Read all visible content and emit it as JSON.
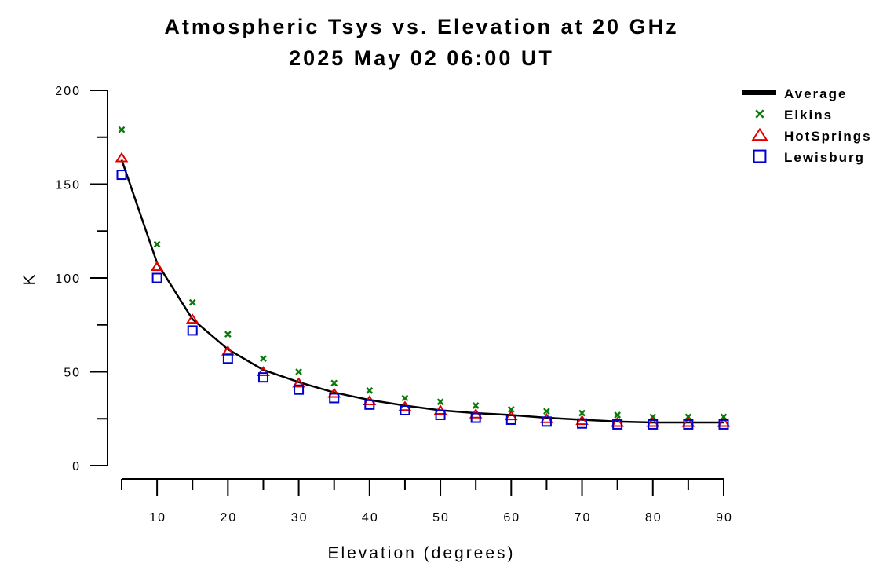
{
  "chart_data": {
    "type": "line",
    "title": "Atmospheric Tsys vs. Elevation at 20 GHz",
    "subtitle": "2025 May 02 06:00 UT",
    "xlabel": "Elevation (degrees)",
    "ylabel": "K",
    "xlim": [
      5,
      90
    ],
    "ylim": [
      0,
      200
    ],
    "x_ticks": [
      10,
      20,
      30,
      40,
      50,
      60,
      70,
      80,
      90
    ],
    "y_ticks": [
      0,
      50,
      100,
      150,
      200
    ],
    "grid": false,
    "legend_position": "top-right",
    "x": [
      5,
      10,
      15,
      20,
      25,
      30,
      35,
      40,
      45,
      50,
      55,
      60,
      65,
      70,
      75,
      80,
      85,
      90
    ],
    "series": [
      {
        "name": "Average",
        "style": "line",
        "color": "#000000",
        "values": [
          163,
          108,
          78,
          62,
          51,
          44.5,
          39,
          35,
          32,
          29.5,
          28,
          27,
          25.5,
          24.5,
          23.5,
          23,
          23,
          23
        ]
      },
      {
        "name": "Elkins",
        "style": "x-marker",
        "color": "#0a7a0a",
        "values": [
          179,
          118,
          87,
          70,
          57,
          50,
          44,
          40,
          36,
          34,
          32,
          30,
          29,
          28,
          27,
          26,
          26,
          26
        ]
      },
      {
        "name": "HotSprings",
        "style": "triangle-marker",
        "color": "#e00000",
        "values": [
          164,
          106,
          78,
          61,
          50,
          44,
          38.5,
          34.5,
          31.5,
          29.5,
          27.5,
          26.5,
          25,
          24,
          23,
          23,
          23,
          23
        ]
      },
      {
        "name": "Lewisburg",
        "style": "square-marker",
        "color": "#0000cc",
        "values": [
          155,
          100,
          72,
          57,
          47,
          40.5,
          36,
          32.5,
          29.5,
          27,
          25.5,
          24.5,
          23.5,
          22.5,
          22,
          22,
          22,
          22
        ]
      }
    ]
  }
}
